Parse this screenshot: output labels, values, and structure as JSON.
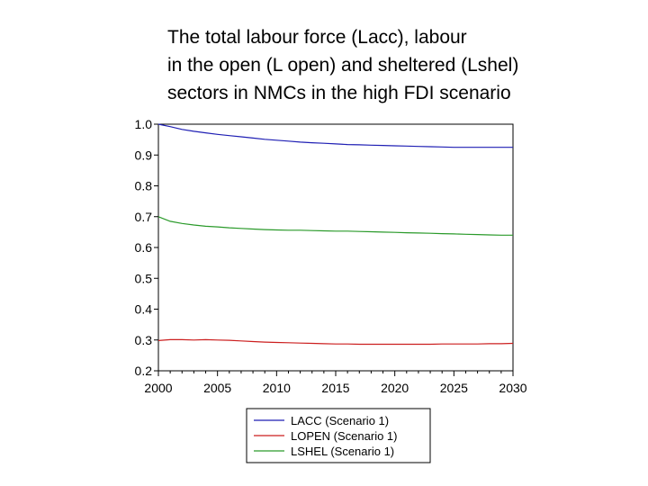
{
  "title_lines": [
    "The total labour force (Lacc), labour",
    "in the open (L open) and sheltered (Lshel)",
    "sectors in NMCs in the high FDI scenario"
  ],
  "chart_data": {
    "type": "line",
    "title": "The total labour force (Lacc), labour in the open (L open) and sheltered (Lshel) sectors in NMCs in the high FDI scenario",
    "xlabel": "",
    "ylabel": "",
    "xlim": [
      2000,
      2030
    ],
    "ylim": [
      0.2,
      1.0
    ],
    "x_ticks": [
      2000,
      2005,
      2010,
      2015,
      2020,
      2025,
      2030
    ],
    "y_ticks": [
      0.2,
      0.3,
      0.4,
      0.5,
      0.6,
      0.7,
      0.8,
      0.9,
      1.0
    ],
    "x_tick_labels": [
      "2000",
      "2005",
      "2010",
      "2015",
      "2020",
      "2025",
      "2030"
    ],
    "y_tick_labels": [
      "0.2",
      "0.3",
      "0.4",
      "0.5",
      "0.6",
      "0.7",
      "0.8",
      "0.9",
      "1.0"
    ],
    "grid": false,
    "legend_position": "bottom",
    "x": [
      2000,
      2001,
      2002,
      2003,
      2004,
      2005,
      2006,
      2007,
      2008,
      2009,
      2010,
      2011,
      2012,
      2013,
      2014,
      2015,
      2016,
      2017,
      2018,
      2019,
      2020,
      2021,
      2022,
      2023,
      2024,
      2025,
      2026,
      2027,
      2028,
      2029,
      2030
    ],
    "series": [
      {
        "name": "LACC (Scenario 1)",
        "color": "#1f1fb4",
        "values": [
          1.0,
          0.992,
          0.983,
          0.977,
          0.972,
          0.967,
          0.963,
          0.959,
          0.955,
          0.951,
          0.948,
          0.945,
          0.942,
          0.94,
          0.938,
          0.936,
          0.934,
          0.933,
          0.932,
          0.931,
          0.93,
          0.929,
          0.928,
          0.927,
          0.926,
          0.925,
          0.925,
          0.925,
          0.925,
          0.925,
          0.925
        ]
      },
      {
        "name": "LOPEN (Scenario 1)",
        "color": "#cc1f1f",
        "values": [
          0.298,
          0.301,
          0.301,
          0.3,
          0.301,
          0.3,
          0.299,
          0.297,
          0.295,
          0.293,
          0.292,
          0.291,
          0.29,
          0.289,
          0.288,
          0.287,
          0.287,
          0.286,
          0.286,
          0.286,
          0.286,
          0.286,
          0.286,
          0.286,
          0.287,
          0.287,
          0.287,
          0.287,
          0.288,
          0.288,
          0.289
        ]
      },
      {
        "name": "LSHEL (Scenario 1)",
        "color": "#2a9a2a",
        "values": [
          0.7,
          0.685,
          0.678,
          0.673,
          0.669,
          0.667,
          0.664,
          0.662,
          0.66,
          0.658,
          0.657,
          0.656,
          0.656,
          0.655,
          0.654,
          0.653,
          0.653,
          0.652,
          0.651,
          0.65,
          0.649,
          0.648,
          0.647,
          0.646,
          0.645,
          0.644,
          0.643,
          0.642,
          0.641,
          0.64,
          0.64
        ]
      }
    ]
  }
}
